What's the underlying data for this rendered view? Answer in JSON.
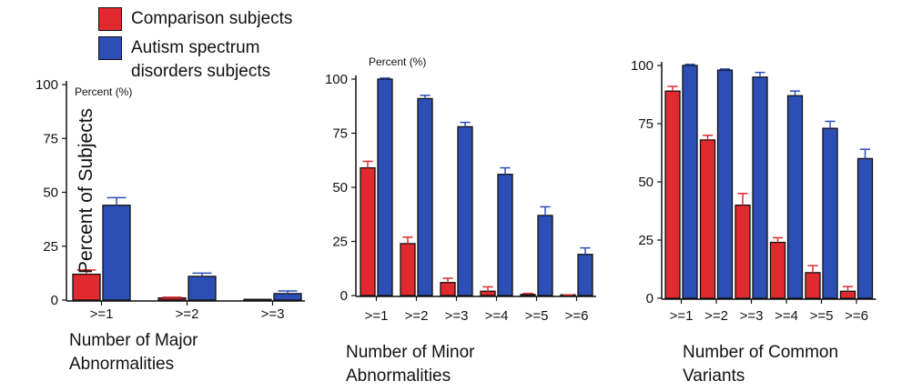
{
  "legend": {
    "items": [
      {
        "label": "Comparison subjects",
        "color": "#e12a2f"
      },
      {
        "label": "Autism spectrum\ndisorders subjects",
        "color": "#2c4fb5"
      }
    ]
  },
  "ylabel": "Percent of Subjects",
  "chart_data": [
    {
      "type": "bar",
      "panel_note": "Percent (%)",
      "xlabel": "Number of Major\nAbnormalities",
      "ylabel": "Percent of Subjects",
      "ylim": [
        0,
        100
      ],
      "yticks": [
        "0",
        "25",
        "50",
        "75",
        "100"
      ],
      "categories": [
        ">=1",
        ">=2",
        ">=3"
      ],
      "series": [
        {
          "name": "Comparison subjects",
          "color": "#e12a2f",
          "values": [
            12,
            1,
            0
          ],
          "errors": [
            2,
            0.3,
            0
          ]
        },
        {
          "name": "Autism spectrum disorders subjects",
          "color": "#2c4fb5",
          "values": [
            44,
            11,
            3
          ],
          "errors": [
            3.5,
            1.5,
            1.2
          ]
        }
      ],
      "grid": false
    },
    {
      "type": "bar",
      "panel_note": "Percent (%)",
      "xlabel": "Number of Minor\nAbnormalities",
      "ylim": [
        0,
        100
      ],
      "yticks": [
        "0",
        "25",
        "50",
        "75",
        "100"
      ],
      "categories": [
        ">=1",
        ">=2",
        ">=3",
        ">=4",
        ">=5",
        ">=6"
      ],
      "series": [
        {
          "name": "Comparison subjects",
          "color": "#e12a2f",
          "values": [
            59,
            24,
            6,
            2,
            0.5,
            0
          ],
          "errors": [
            3,
            3,
            2,
            2,
            0.5,
            0.3
          ]
        },
        {
          "name": "Autism spectrum disorders subjects",
          "color": "#2c4fb5",
          "values": [
            100,
            91,
            78,
            56,
            37,
            19
          ],
          "errors": [
            0.5,
            1.5,
            2,
            3,
            4,
            3
          ]
        }
      ],
      "grid": false
    },
    {
      "type": "bar",
      "panel_note": "",
      "xlabel": "Number of Common\nVariants",
      "ylim": [
        0,
        100
      ],
      "yticks": [
        "0",
        "25",
        "50",
        "75",
        "100"
      ],
      "categories": [
        ">=1",
        ">=2",
        ">=3",
        ">=4",
        ">=5",
        ">=6"
      ],
      "series": [
        {
          "name": "Comparison subjects",
          "color": "#e12a2f",
          "values": [
            89,
            68,
            40,
            24,
            11,
            3
          ],
          "errors": [
            2,
            2,
            5,
            2,
            3,
            2
          ]
        },
        {
          "name": "Autism spectrum disorders subjects",
          "color": "#2c4fb5",
          "values": [
            100,
            98,
            95,
            87,
            73,
            60
          ],
          "errors": [
            0.5,
            0.5,
            2,
            2,
            3,
            4
          ]
        }
      ],
      "grid": false
    }
  ]
}
